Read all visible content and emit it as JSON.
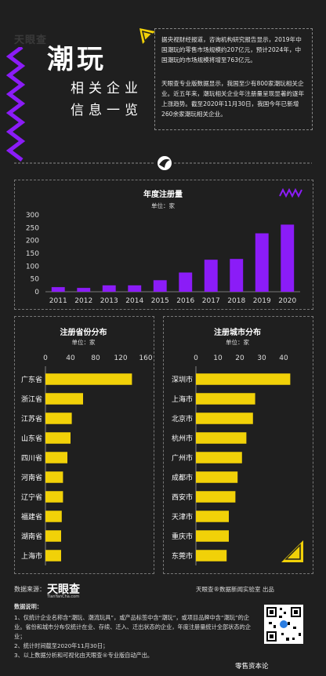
{
  "header": {
    "brand": "天眼查",
    "brand_sub": "TianYanCha.com",
    "title": "潮玩",
    "subtitle_line1": "相关企业",
    "subtitle_line2": "信息一览"
  },
  "intro": {
    "para1": "据央视财经报道，咨询机构研究报告显示，2019年中国潮玩的零售市场规模约207亿元，预计2024年，中国潮玩的市场规模将增至763亿元。",
    "para2": "天眼查专业版数据显示，我国至少有800家潮玩相关企业。近五年来，潮玩相关企业年注册量呈现显著的逐年上涨趋势。截至2020年11月30日，我国今年已新增260余家潮玩相关企业。"
  },
  "chart_data": [
    {
      "type": "bar",
      "title": "年度注册量",
      "unit": "单位：家",
      "categories": [
        "2011",
        "2012",
        "2013",
        "2014",
        "2015",
        "2016",
        "2017",
        "2018",
        "2019",
        "2020"
      ],
      "values": [
        18,
        15,
        25,
        25,
        45,
        75,
        125,
        128,
        228,
        262
      ],
      "yticks": [
        0,
        50,
        100,
        150,
        200,
        250,
        300
      ],
      "ylim": [
        0,
        300
      ],
      "color": "#8b1cf7"
    },
    {
      "type": "bar",
      "orientation": "horizontal",
      "title": "注册省份分布",
      "unit": "单位：家",
      "categories": [
        "广东省",
        "浙江省",
        "江苏省",
        "山东省",
        "四川省",
        "河南省",
        "辽宁省",
        "福建省",
        "湖南省",
        "上海市"
      ],
      "values": [
        138,
        60,
        42,
        40,
        35,
        28,
        28,
        26,
        25,
        25
      ],
      "xticks": [
        0,
        40,
        80,
        120,
        160
      ],
      "xlim": [
        0,
        160
      ],
      "color": "#f1d108"
    },
    {
      "type": "bar",
      "orientation": "horizontal",
      "title": "注册城市分布",
      "unit": "单位：家",
      "categories": [
        "深圳市",
        "上海市",
        "北京市",
        "杭州市",
        "广州市",
        "成都市",
        "西安市",
        "天津市",
        "重庆市",
        "东莞市"
      ],
      "values": [
        43,
        27,
        26,
        23,
        21,
        19,
        18,
        15,
        15,
        14
      ],
      "xticks": [
        0,
        10,
        20,
        30,
        40
      ],
      "xlim": [
        0,
        45
      ],
      "color": "#f1d108"
    }
  ],
  "footer": {
    "source_label": "数据来源：",
    "lab": "天眼查®数据新闻实验室 出品",
    "notes_title": "数据说明：",
    "note1": "1、仅统计企业名称含“潮玩、潮流玩具”，或产品标签中含“潮玩”，或项目品牌中含“潮玩”的企业。省份和城市分布仅统计在业、存续、迁入、迁出状态的企业，年度注册量统计全部状态的企业；",
    "note2": "2、统计时间截至2020年11月30日；",
    "note3": "3、以上数据分析和可视化由天眼查®专业版自动产出。",
    "watermark": "零售资本论"
  },
  "colors": {
    "purple": "#8b1cf7",
    "yellow": "#f1d108",
    "bg": "#1f1f1f"
  }
}
